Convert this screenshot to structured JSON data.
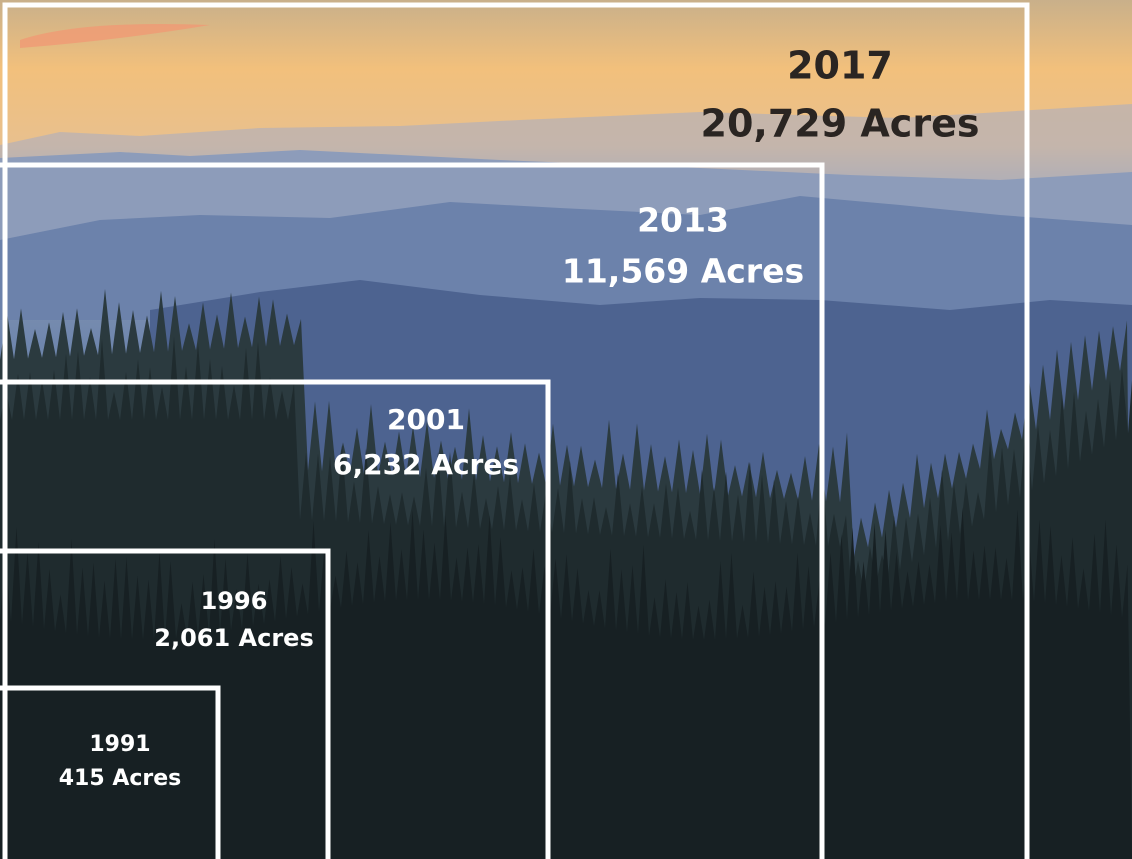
{
  "boxes": [
    {
      "year": "2017",
      "acres": "20,729 Acres"
    },
    {
      "year": "2013",
      "acres": "11,569 Acres"
    },
    {
      "year": "2001",
      "acres": "6,232 Acres"
    },
    {
      "year": "1996",
      "acres": "2,061 Acres"
    },
    {
      "year": "1991",
      "acres": "415 Acres"
    }
  ]
}
